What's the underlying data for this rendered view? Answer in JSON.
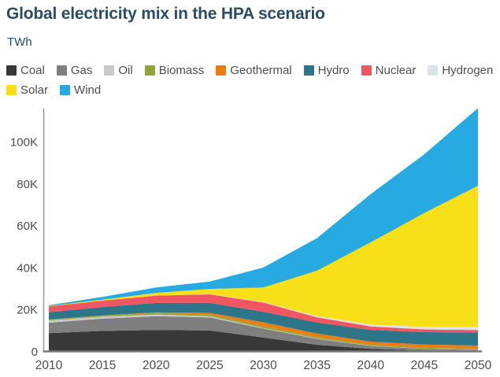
{
  "header": {
    "title": "Global electricity mix in the HPA scenario",
    "unit": "TWh"
  },
  "legend": {
    "rows": [
      [
        "Coal",
        "Gas",
        "Oil",
        "Biomass",
        "Geothermal",
        "Hydro",
        "Nuclear",
        "Hydrogen"
      ],
      [
        "Solar",
        "Wind"
      ]
    ]
  },
  "chart_data": {
    "type": "area",
    "stacked": true,
    "title": "Global electricity mix in the HPA scenario",
    "ylabel": "TWh",
    "xlabel": "",
    "grid": false,
    "legend_position": "top",
    "x": [
      2010,
      2015,
      2020,
      2025,
      2030,
      2035,
      2040,
      2045,
      2050
    ],
    "xlim": [
      2010,
      2050
    ],
    "ylim": [
      0,
      116000
    ],
    "series": [
      {
        "name": "Coal",
        "color": "#383838",
        "values": [
          8700,
          9800,
          10200,
          10000,
          6600,
          3200,
          1200,
          500,
          300
        ]
      },
      {
        "name": "Gas",
        "color": "#7f7f7f",
        "values": [
          5000,
          5800,
          6600,
          6200,
          4300,
          2800,
          1400,
          700,
          400
        ]
      },
      {
        "name": "Oil",
        "color": "#c9c9c9",
        "values": [
          1000,
          1000,
          800,
          600,
          300,
          200,
          100,
          100,
          100
        ]
      },
      {
        "name": "Biomass",
        "color": "#94a538",
        "values": [
          400,
          500,
          700,
          800,
          800,
          700,
          600,
          500,
          500
        ]
      },
      {
        "name": "Geothermal",
        "color": "#ee7d11",
        "values": [
          100,
          100,
          300,
          800,
          1900,
          1600,
          1400,
          1500,
          1500
        ]
      },
      {
        "name": "Hydro",
        "color": "#2d7689",
        "values": [
          3500,
          4000,
          4500,
          4800,
          5000,
          5300,
          5600,
          5900,
          6200
        ]
      },
      {
        "name": "Nuclear",
        "color": "#f25662",
        "values": [
          2800,
          3000,
          3500,
          4000,
          4400,
          2500,
          1600,
          1300,
          1200
        ]
      },
      {
        "name": "Hydrogen",
        "color": "#dde3e8",
        "values": [
          0,
          0,
          0,
          100,
          300,
          600,
          900,
          1200,
          1500
        ]
      },
      {
        "name": "Solar",
        "color": "#f7e017",
        "values": [
          100,
          500,
          1300,
          2500,
          6900,
          21600,
          39200,
          54300,
          67300
        ]
      },
      {
        "name": "Wind",
        "color": "#27aae1",
        "values": [
          400,
          1300,
          2600,
          3500,
          9500,
          15500,
          23000,
          28000,
          37000
        ]
      }
    ],
    "yticks": {
      "values": [
        0,
        20000,
        40000,
        60000,
        80000,
        100000
      ],
      "labels": [
        "0",
        "20K",
        "40K",
        "60K",
        "80K",
        "100K"
      ]
    },
    "xticks": {
      "values": [
        2010,
        2015,
        2020,
        2025,
        2030,
        2035,
        2040,
        2045,
        2050
      ],
      "labels": [
        "2010",
        "2015",
        "2020",
        "2025",
        "2030",
        "2035",
        "2040",
        "2045",
        "2050"
      ]
    }
  }
}
